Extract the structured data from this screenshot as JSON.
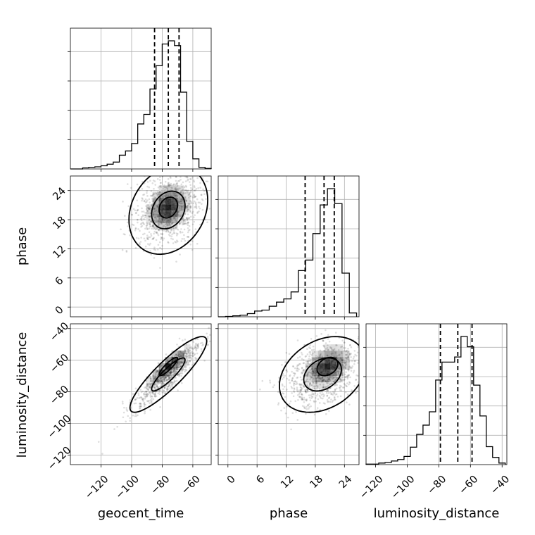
{
  "chart_data": {
    "type": "corner",
    "parameters": [
      "geocent_time",
      "phase",
      "luminosity_distance"
    ],
    "axis_labels": {
      "geocent_time": "geocent_time",
      "phase": "phase",
      "luminosity_distance": "luminosity_distance"
    },
    "ranges": {
      "geocent_time": [
        -140,
        -48
      ],
      "phase": [
        -2,
        27
      ],
      "luminosity_distance": [
        -126,
        -37
      ]
    },
    "ticks": {
      "geocent_time": [
        -120,
        -100,
        -80,
        -60
      ],
      "phase": [
        0,
        6,
        12,
        18,
        24
      ],
      "luminosity_distance": [
        -120,
        -100,
        -80,
        -60,
        -40
      ]
    },
    "tick_labels": {
      "geocent_time": [
        "−120",
        "−100",
        "−80",
        "−60"
      ],
      "phase": [
        "0",
        "6",
        "12",
        "18",
        "24"
      ],
      "luminosity_distance": [
        "−120",
        "−100",
        "−80",
        "−60",
        "−40"
      ]
    },
    "quantiles": {
      "geocent_time": [
        -85,
        -76,
        -69
      ],
      "phase": [
        15.9,
        19.8,
        21.9
      ],
      "luminosity_distance": [
        -79,
        -68,
        -59
      ]
    },
    "histograms": {
      "geocent_time": {
        "edges": [
          -140,
          -136,
          -132,
          -128,
          -124,
          -120,
          -116,
          -112,
          -108,
          -104,
          -100,
          -96,
          -92,
          -88,
          -84,
          -80,
          -76,
          -72,
          -68,
          -64,
          -60,
          -56,
          -52,
          -48
        ],
        "counts": [
          0,
          0,
          2,
          3,
          4,
          6,
          9,
          13,
          26,
          34,
          48,
          85,
          103,
          151,
          195,
          236,
          242,
          233,
          145,
          52,
          19,
          3,
          1
        ]
      },
      "phase": {
        "edges": [
          -2,
          -0.5,
          1,
          2.5,
          4,
          5.5,
          7,
          8.5,
          10,
          11.5,
          13,
          14.5,
          16,
          17.5,
          19,
          20.5,
          22,
          23.5,
          25,
          26.5
        ],
        "counts": [
          0,
          1,
          3,
          5,
          10,
          18,
          21,
          33,
          46,
          56,
          78,
          145,
          178,
          261,
          351,
          402,
          355,
          137,
          12
        ]
      },
      "luminosity_distance": {
        "edges": [
          -126,
          -122,
          -118,
          -114,
          -110,
          -106,
          -102,
          -98,
          -94,
          -90,
          -86,
          -82,
          -78,
          -74,
          -70,
          -66,
          -62,
          -58,
          -54,
          -50,
          -46,
          -42,
          -38
        ],
        "counts": [
          1,
          1,
          3,
          4,
          7,
          10,
          16,
          34,
          59,
          77,
          103,
          165,
          200,
          200,
          210,
          250,
          230,
          155,
          95,
          35,
          14,
          3
        ]
      }
    },
    "scatter_pairs": [
      {
        "x": "geocent_time",
        "y": "phase",
        "mean": [
          -76,
          20
        ],
        "sd": [
          11,
          3.9
        ],
        "rho": 0.22,
        "mode": [
          -76,
          20.5
        ],
        "contour_levels": [
          0.39,
          0.86
        ],
        "contour_scale": [
          1,
          1.18
        ]
      },
      {
        "x": "geocent_time",
        "y": "luminosity_distance",
        "mean": [
          -76,
          -69
        ],
        "sd": [
          11,
          10.5
        ],
        "rho": 0.88,
        "mode": [
          -76,
          -64
        ],
        "contour_levels": [
          0.39,
          0.86
        ],
        "contour_scale": [
          1,
          1.15
        ]
      },
      {
        "x": "phase",
        "y": "luminosity_distance",
        "mean": [
          19.5,
          -69
        ],
        "sd": [
          3.9,
          10.5
        ],
        "rho": 0.3,
        "mode": [
          20.5,
          -64
        ],
        "contour_levels": [
          0.39,
          0.86
        ],
        "contour_scale": [
          1,
          1.15
        ]
      }
    ]
  }
}
